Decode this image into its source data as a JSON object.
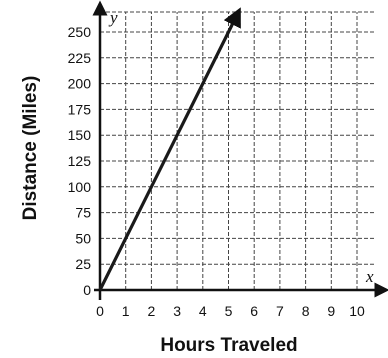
{
  "chart_data": {
    "type": "line",
    "title": "",
    "xlabel": "Hours Traveled",
    "ylabel": "Distance (Miles)",
    "x_axis_var": "x",
    "y_axis_var": "y",
    "xlim": [
      0,
      10
    ],
    "ylim": [
      0,
      250
    ],
    "x_ticks": [
      0,
      1,
      2,
      3,
      4,
      5,
      6,
      7,
      8,
      9,
      10
    ],
    "y_ticks": [
      0,
      25,
      50,
      75,
      100,
      125,
      150,
      175,
      200,
      225,
      250
    ],
    "grid": true,
    "grid_style": "dashed",
    "line_extends_past_plot": true,
    "series": [
      {
        "x": [
          0,
          1,
          2,
          3,
          4,
          5
        ],
        "y": [
          0,
          50,
          100,
          150,
          200,
          250
        ]
      }
    ],
    "colors": {
      "line": "#1a1a1a",
      "axis": "#111111",
      "grid": "#444444"
    }
  }
}
